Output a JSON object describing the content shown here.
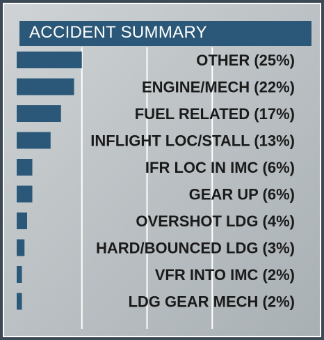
{
  "chart_data": {
    "type": "bar",
    "orientation": "horizontal",
    "title": "ACCIDENT SUMMARY",
    "categories": [
      "OTHER (25%)",
      "ENGINE/MECH (22%)",
      "FUEL RELATED (17%)",
      "INFLIGHT LOC/STALL (13%)",
      "IFR LOC IN IMC (6%)",
      "GEAR UP (6%)",
      "OVERSHOT LDG (4%)",
      "HARD/BOUNCED LDG (3%)",
      "VFR INTO IMC (2%)",
      "LDG GEAR MECH (2%)"
    ],
    "values": [
      25,
      22,
      17,
      13,
      6,
      6,
      4,
      3,
      2,
      2
    ],
    "xlim": [
      0,
      100
    ],
    "grid": true,
    "colors": {
      "bar": "#2b5878",
      "title_bar": "#2b5878",
      "grid": "#ffffff"
    }
  }
}
